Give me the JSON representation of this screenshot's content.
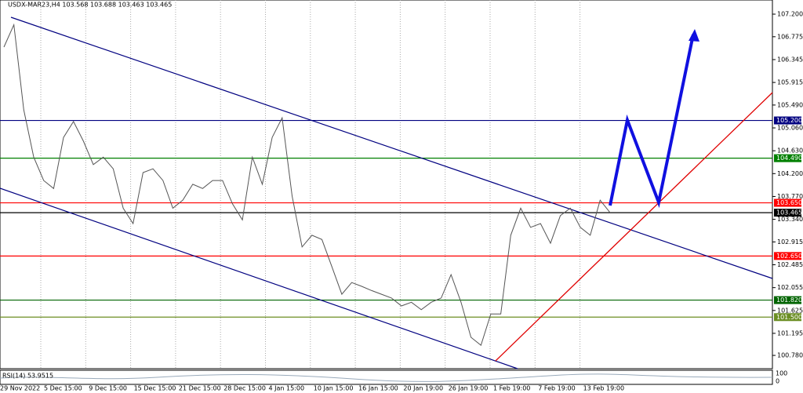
{
  "chart_data": {
    "type": "line",
    "title": "USDX-MAR23,H4  103.568 103.688 103.463 103.465",
    "ylim": [
      100.53,
      107.466
    ],
    "yticks": [
      {
        "value": 107.2,
        "label": "107.200"
      },
      106.775,
      106.345,
      105.915,
      {
        "value": 105.49,
        "label": "105.490"
      },
      {
        "value": 105.06,
        "label": "105.060"
      },
      {
        "value": 104.63,
        "label": "104.630"
      },
      {
        "value": 104.2,
        "label": "104.200"
      },
      {
        "value": 103.77,
        "label": "103.770"
      },
      {
        "value": 103.34,
        "label": "103.340"
      },
      102.915,
      102.485,
      102.055,
      101.625,
      101.195,
      {
        "value": 100.78,
        "label": "100.780"
      }
    ],
    "xticks": [
      "29 Nov 2022",
      "5 Dec 15:00",
      "9 Dec 15:00",
      "15 Dec 15:00",
      "21 Dec 15:00",
      "28 Dec 15:00",
      "4 Jan 15:00",
      "10 Jan 15:00",
      "16 Jan 15:00",
      "20 Jan 19:00",
      "26 Jan 19:00",
      "1 Feb 19:00",
      "7 Feb 19:00",
      "13 Feb 19:00"
    ],
    "grid": true,
    "series": [
      {
        "color": "#555555",
        "values": [
          106.58,
          107.0,
          105.4,
          104.51,
          104.07,
          103.92,
          104.88,
          105.18,
          104.81,
          104.37,
          104.51,
          104.29,
          103.55,
          103.26,
          104.22,
          104.29,
          104.07,
          103.55,
          103.7,
          104.0,
          103.92,
          104.07,
          104.07,
          103.63,
          103.33,
          104.51,
          104.0,
          104.88,
          105.25,
          103.78,
          102.82,
          103.04,
          102.96,
          102.45,
          101.93,
          102.15,
          102.08,
          102.0,
          101.93,
          101.86,
          101.71,
          101.78,
          101.64,
          101.78,
          101.86,
          102.3,
          101.78,
          101.12,
          100.97,
          101.56,
          101.56,
          103.04,
          103.55,
          103.19,
          103.26,
          102.89,
          103.41,
          103.55,
          103.19,
          103.04,
          103.7,
          103.465
        ]
      }
    ],
    "levels": [
      {
        "value": 105.2,
        "label": "105.200",
        "color": "#000080"
      },
      {
        "value": 104.49,
        "label": "104.490",
        "color": "#008000"
      },
      {
        "value": 103.65,
        "label": "103.650",
        "color": "#ff0000"
      },
      {
        "value": 103.465,
        "label": "103.465",
        "color": "#000000"
      },
      {
        "value": 102.65,
        "label": "102.650",
        "color": "#ff0000"
      },
      {
        "value": 101.82,
        "label": "101.820",
        "color": "#006400"
      },
      {
        "value": 101.5,
        "label": "101.500",
        "color": "#6b8e23"
      }
    ],
    "rsi": {
      "label": "RSI(14) 53.9515",
      "axis_labels": [
        "100",
        "0"
      ]
    }
  }
}
